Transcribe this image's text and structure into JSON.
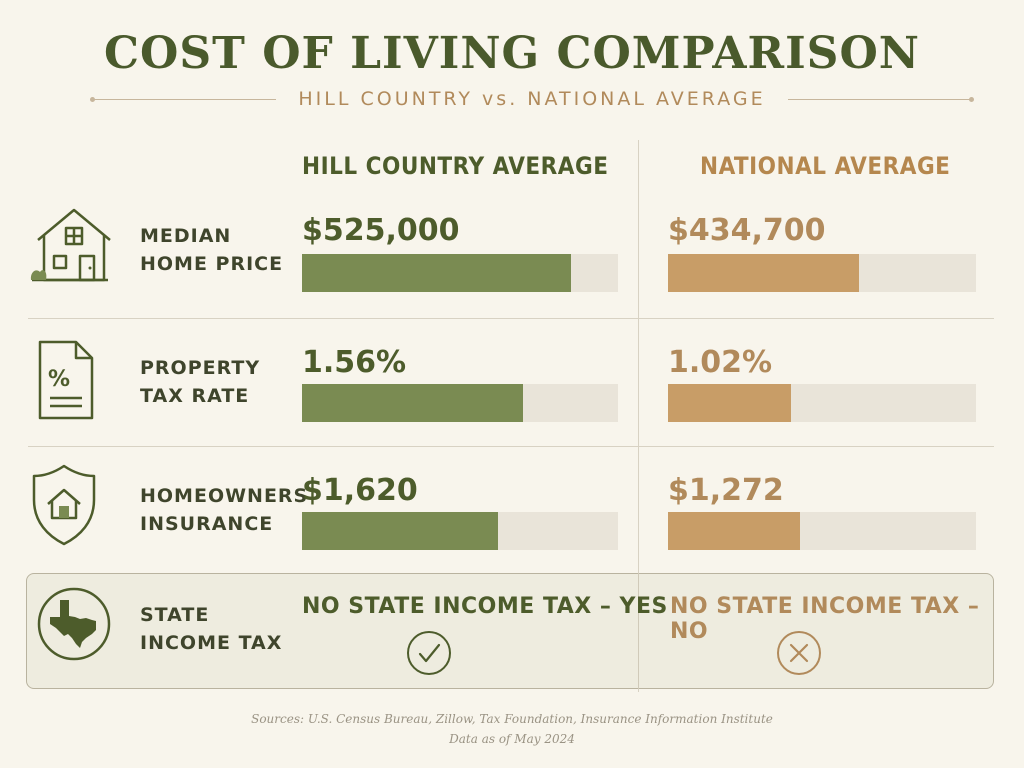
{
  "title": "COST OF LIVING COMPARISON",
  "subtitle": "HILL COUNTRY vs. NATIONAL AVERAGE",
  "columns": {
    "local": "HILL COUNTRY AVERAGE",
    "national": "NATIONAL AVERAGE"
  },
  "colors": {
    "local": "#7a8b52",
    "national": "#c89d67",
    "track": "#e9e4d9",
    "text_dark": "#4a5a2c"
  },
  "rows": [
    {
      "label_line1": "MEDIAN",
      "label_line2": "HOME PRICE",
      "icon": "house-icon",
      "local_value": "$525,000",
      "national_value": "$434,700"
    },
    {
      "label_line1": "PROPERTY",
      "label_line2": "TAX RATE",
      "icon": "tax-document-icon",
      "local_value": "1.56%",
      "national_value": "1.02%"
    },
    {
      "label_line1": "HOMEOWNERS",
      "label_line2": "INSURANCE",
      "icon": "shield-house-icon",
      "local_value": "$1,620",
      "national_value": "$1,272"
    }
  ],
  "income_tax": {
    "label_line1": "STATE",
    "label_line2": "INCOME TAX",
    "icon": "texas-map-icon",
    "local_text": "NO STATE INCOME TAX – YES",
    "local_icon": "check-circle-icon",
    "national_text": "NO STATE INCOME TAX – NO",
    "national_icon": "x-circle-icon"
  },
  "chart_data": {
    "type": "bar",
    "categories": [
      "MEDIAN HOME PRICE",
      "PROPERTY TAX RATE",
      "HOMEOWNERS INSURANCE"
    ],
    "series": [
      {
        "name": "HILL COUNTRY AVERAGE",
        "values": [
          525000,
          1.56,
          1620
        ],
        "bar_fraction": [
          0.85,
          0.7,
          0.62
        ]
      },
      {
        "name": "NATIONAL AVERAGE",
        "values": [
          434700,
          1.02,
          1272
        ],
        "bar_fraction": [
          0.62,
          0.4,
          0.43
        ]
      }
    ]
  },
  "footer": {
    "sources": "Sources: U.S. Census Bureau, Zillow, Tax Foundation, Insurance Information Institute",
    "date": "Data as of May 2024"
  }
}
